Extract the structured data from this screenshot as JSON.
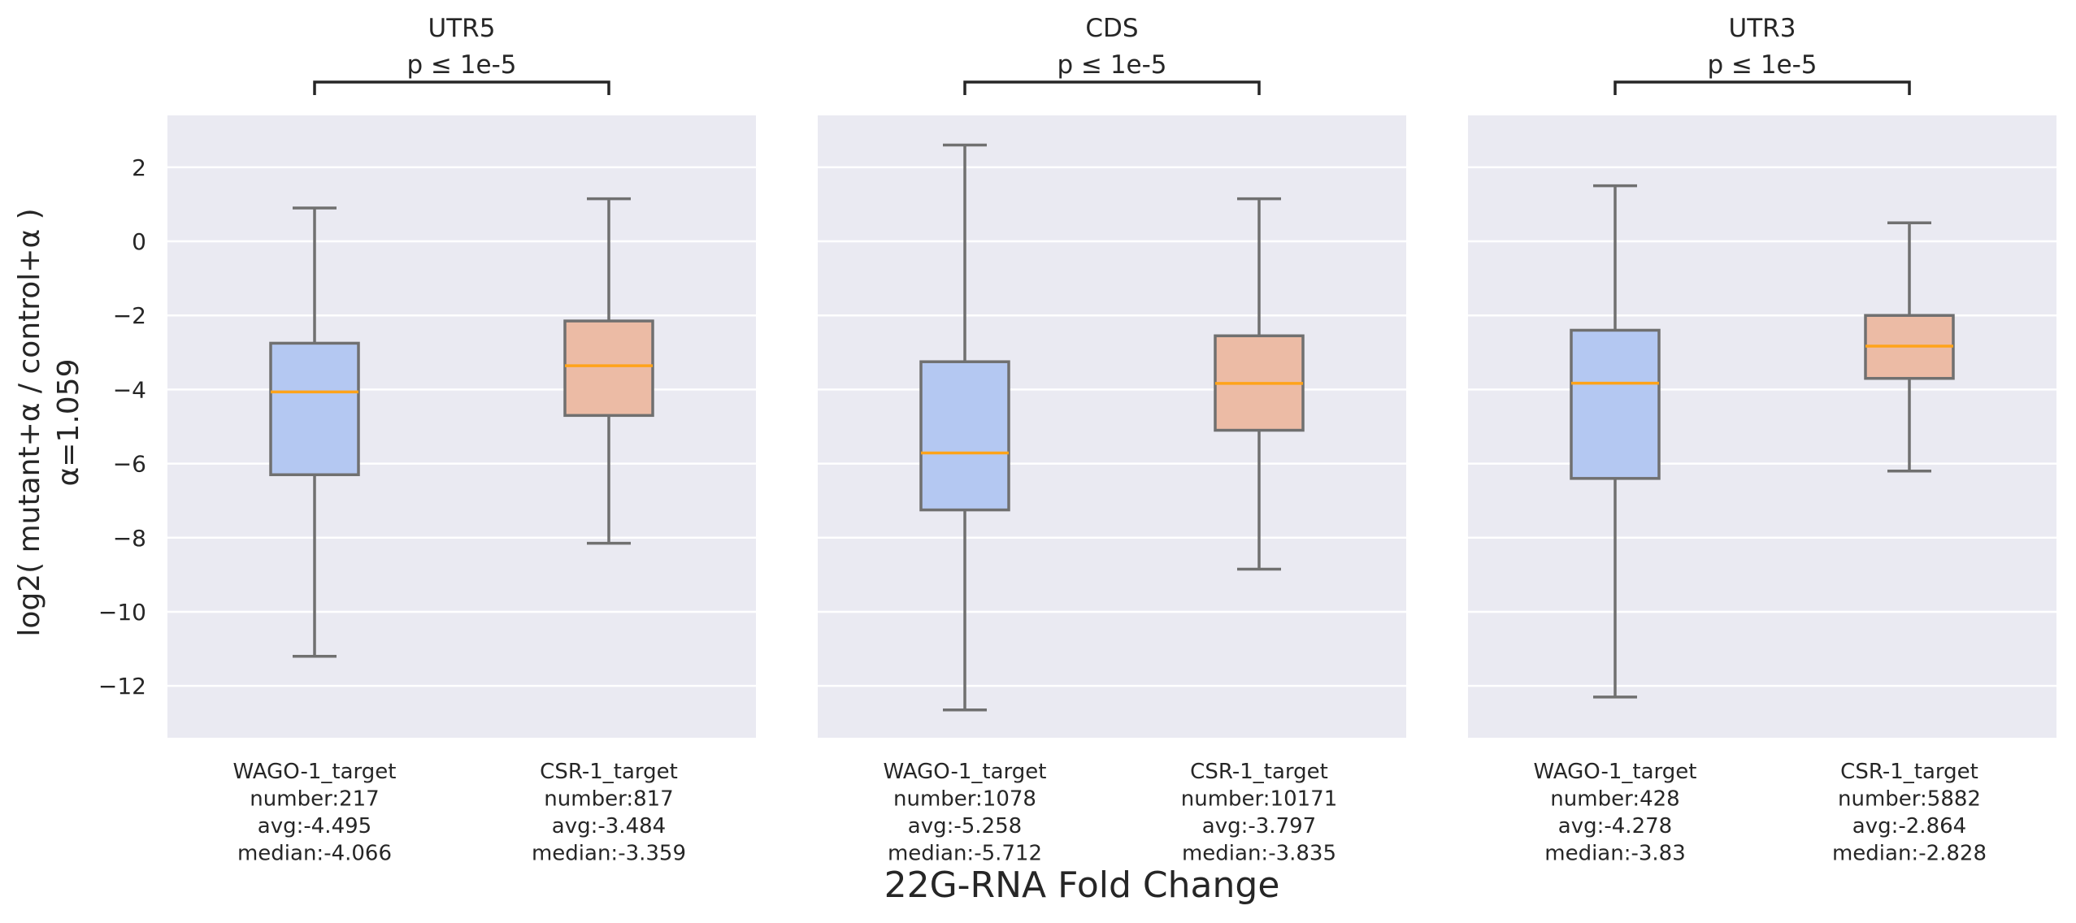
{
  "figure": {
    "ylabel_line1": "log2( mutant+α / control+α )",
    "ylabel_line2": "α=1.059",
    "xlabel": "22G-RNA Fold Change"
  },
  "colors": {
    "panel_bg": "#eaeaf2",
    "grid": "#ffffff",
    "box_blue": "#b4c8f2",
    "box_orange": "#ecbba5",
    "box_edge": "#707070",
    "median": "#ffa31a",
    "bracket": "#262626"
  },
  "chart_data": [
    {
      "type": "box",
      "title": "UTR5",
      "pvalue_label": "p ≤ 1e-5",
      "ylim": [
        -13.4,
        3.4
      ],
      "yticks": [
        2,
        0,
        -2,
        -4,
        -6,
        -8,
        -10,
        -12
      ],
      "ytick_labels": [
        "2",
        "0",
        "−2",
        "−4",
        "−6",
        "−8",
        "−10",
        "−12"
      ],
      "grid": true,
      "boxes": [
        {
          "label": "WAGO-1_target",
          "stats": [
            "number:217",
            "avg:-4.495",
            "median:-4.066"
          ],
          "whisker_high": 0.9,
          "q3": -2.75,
          "median": -4.066,
          "q1": -6.3,
          "whisker_low": -11.2,
          "color": "blue"
        },
        {
          "label": "CSR-1_target",
          "stats": [
            "number:817",
            "avg:-3.484",
            "median:-3.359"
          ],
          "whisker_high": 1.15,
          "q3": -2.15,
          "median": -3.359,
          "q1": -4.7,
          "whisker_low": -8.15,
          "color": "orange"
        }
      ]
    },
    {
      "type": "box",
      "title": "CDS",
      "pvalue_label": "p ≤ 1e-5",
      "ylim": [
        -13.4,
        3.4
      ],
      "yticks": [
        2,
        0,
        -2,
        -4,
        -6,
        -8,
        -10,
        -12
      ],
      "ytick_labels": [
        "2",
        "0",
        "−2",
        "−4",
        "−6",
        "−8",
        "−10",
        "−12"
      ],
      "grid": true,
      "boxes": [
        {
          "label": "WAGO-1_target",
          "stats": [
            "number:1078",
            "avg:-5.258",
            "median:-5.712"
          ],
          "whisker_high": 2.6,
          "q3": -3.25,
          "median": -5.712,
          "q1": -7.25,
          "whisker_low": -12.65,
          "color": "blue"
        },
        {
          "label": "CSR-1_target",
          "stats": [
            "number:10171",
            "avg:-3.797",
            "median:-3.835"
          ],
          "whisker_high": 1.15,
          "q3": -2.55,
          "median": -3.835,
          "q1": -5.1,
          "whisker_low": -8.85,
          "color": "orange"
        }
      ]
    },
    {
      "type": "box",
      "title": "UTR3",
      "pvalue_label": "p ≤ 1e-5",
      "ylim": [
        -13.4,
        3.4
      ],
      "yticks": [
        2,
        0,
        -2,
        -4,
        -6,
        -8,
        -10,
        -12
      ],
      "ytick_labels": [
        "2",
        "0",
        "−2",
        "−4",
        "−6",
        "−8",
        "−10",
        "−12"
      ],
      "grid": true,
      "boxes": [
        {
          "label": "WAGO-1_target",
          "stats": [
            "number:428",
            "avg:-4.278",
            "median:-3.83"
          ],
          "whisker_high": 1.5,
          "q3": -2.4,
          "median": -3.83,
          "q1": -6.4,
          "whisker_low": -12.3,
          "color": "blue"
        },
        {
          "label": "CSR-1_target",
          "stats": [
            "number:5882",
            "avg:-2.864",
            "median:-2.828"
          ],
          "whisker_high": 0.5,
          "q3": -2.0,
          "median": -2.828,
          "q1": -3.7,
          "whisker_low": -6.2,
          "color": "orange"
        }
      ]
    }
  ]
}
